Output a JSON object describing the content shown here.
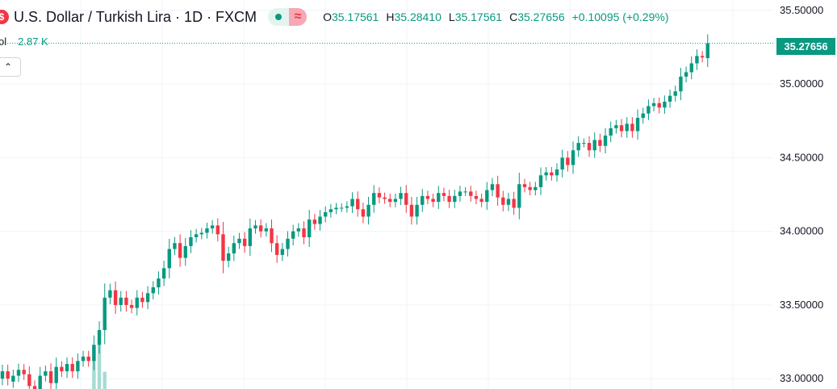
{
  "header": {
    "logo_glyph": "$",
    "title": "U.S. Dollar / Turkish Lira · 1D · FXCM",
    "ohlc": {
      "o_key": "O",
      "o": "35.17561",
      "h_key": "H",
      "h": "35.28410",
      "l_key": "L",
      "l": "35.17561",
      "c_key": "C",
      "c": "35.27656",
      "change": "+0.10095 (+0.29%)"
    }
  },
  "volume": {
    "label": "ol",
    "value": "2.87 K"
  },
  "last_price_label": "35.27656",
  "colors": {
    "up": "#089981",
    "down": "#f23645",
    "vol_up": "#a5dcd3",
    "vol_down": "#f7b0b3",
    "grid": "#f0f3fa"
  },
  "chart_data": {
    "type": "candlestick",
    "ylim": [
      32.93,
      35.57
    ],
    "y_ticks": [
      "35.50000",
      "35.00000",
      "34.50000",
      "34.00000",
      "33.50000",
      "33.00000"
    ],
    "y_tick_values": [
      35.5,
      35.0,
      34.5,
      34.0,
      33.5,
      33.0
    ],
    "last_price": 35.27656,
    "close": [
      33.05,
      33.0,
      33.02,
      33.06,
      33.03,
      32.95,
      32.92,
      33.02,
      33.05,
      32.97,
      33.08,
      33.05,
      33.1,
      33.05,
      33.12,
      33.15,
      33.12,
      33.23,
      33.33,
      33.55,
      33.6,
      33.5,
      33.55,
      33.5,
      33.48,
      33.55,
      33.52,
      33.58,
      33.62,
      33.68,
      33.75,
      33.88,
      33.92,
      33.82,
      33.9,
      33.96,
      33.98,
      33.99,
      34.02,
      34.04,
      33.98,
      33.8,
      33.85,
      33.92,
      33.95,
      33.9,
      34.02,
      34.04,
      34.0,
      34.02,
      33.92,
      33.84,
      33.88,
      33.95,
      34.0,
      34.02,
      33.96,
      34.08,
      34.05,
      34.1,
      34.13,
      34.15,
      34.16,
      34.16,
      34.17,
      34.22,
      34.15,
      34.1,
      34.18,
      34.26,
      34.23,
      34.22,
      34.2,
      34.22,
      34.26,
      34.18,
      34.1,
      34.18,
      34.24,
      34.22,
      34.2,
      34.26,
      34.24,
      34.2,
      34.24,
      34.27,
      34.27,
      34.24,
      34.22,
      34.2,
      34.28,
      34.32,
      34.23,
      34.18,
      34.22,
      34.16,
      34.32,
      34.3,
      34.28,
      34.3,
      34.38,
      34.4,
      34.38,
      34.42,
      34.5,
      34.45,
      34.55,
      34.6,
      34.6,
      34.55,
      34.62,
      34.58,
      34.65,
      34.7,
      34.72,
      34.68,
      34.73,
      34.68,
      34.77,
      34.8,
      34.85,
      34.87,
      34.84,
      34.88,
      34.92,
      34.95,
      35.05,
      35.08,
      35.14,
      35.19,
      35.18,
      35.27656
    ],
    "open": [
      33.0,
      33.05,
      32.98,
      33.02,
      33.06,
      33.03,
      32.95,
      32.92,
      33.02,
      33.05,
      32.97,
      33.08,
      33.05,
      33.1,
      33.05,
      33.12,
      33.15,
      33.12,
      33.23,
      33.33,
      33.55,
      33.6,
      33.5,
      33.55,
      33.5,
      33.48,
      33.55,
      33.52,
      33.58,
      33.62,
      33.68,
      33.75,
      33.88,
      33.92,
      33.82,
      33.9,
      33.96,
      33.98,
      33.99,
      34.02,
      34.04,
      33.98,
      33.8,
      33.85,
      33.92,
      33.95,
      33.9,
      34.02,
      34.04,
      34.0,
      34.02,
      33.92,
      33.84,
      33.88,
      33.95,
      34.0,
      34.02,
      33.96,
      34.08,
      34.05,
      34.1,
      34.13,
      34.15,
      34.16,
      34.16,
      34.17,
      34.22,
      34.15,
      34.1,
      34.18,
      34.26,
      34.23,
      34.22,
      34.2,
      34.22,
      34.26,
      34.18,
      34.1,
      34.18,
      34.24,
      34.22,
      34.2,
      34.26,
      34.24,
      34.2,
      34.24,
      34.27,
      34.27,
      34.24,
      34.22,
      34.2,
      34.28,
      34.32,
      34.23,
      34.18,
      34.22,
      34.16,
      34.32,
      34.3,
      34.28,
      34.3,
      34.38,
      34.4,
      34.38,
      34.42,
      34.5,
      34.45,
      34.55,
      34.6,
      34.6,
      34.55,
      34.62,
      34.58,
      34.65,
      34.7,
      34.72,
      34.68,
      34.73,
      34.68,
      34.77,
      34.8,
      34.85,
      34.87,
      34.84,
      34.88,
      34.92,
      34.95,
      35.05,
      35.08,
      35.14,
      35.19,
      35.17561
    ],
    "volume": [
      0,
      0,
      0,
      0,
      0,
      0,
      0,
      0,
      0,
      0,
      0,
      0,
      0,
      0,
      0,
      0,
      0,
      12,
      14,
      5,
      0,
      0,
      0,
      0,
      0,
      0,
      0,
      0,
      0,
      0,
      0,
      0,
      0,
      0,
      0,
      0,
      0,
      0,
      0,
      0,
      0,
      0,
      0,
      0,
      0,
      0,
      0,
      0,
      0,
      0,
      0,
      0,
      0,
      0,
      0,
      0,
      0,
      0,
      0,
      0,
      0,
      0,
      0,
      0,
      0,
      0,
      0,
      0,
      0,
      0,
      0,
      0,
      0,
      0,
      0,
      0,
      0,
      0,
      0,
      0,
      0,
      0,
      0,
      0,
      0,
      0,
      0,
      0,
      0,
      0,
      0,
      0,
      0,
      0,
      0,
      0,
      0,
      0,
      0,
      0,
      0,
      0,
      0,
      0,
      0,
      0,
      0,
      0,
      0,
      0,
      0,
      0,
      0,
      0,
      0,
      0,
      0,
      0,
      0,
      0,
      0,
      0,
      0,
      0,
      0,
      0,
      0,
      0,
      0,
      0,
      0,
      0
    ]
  }
}
